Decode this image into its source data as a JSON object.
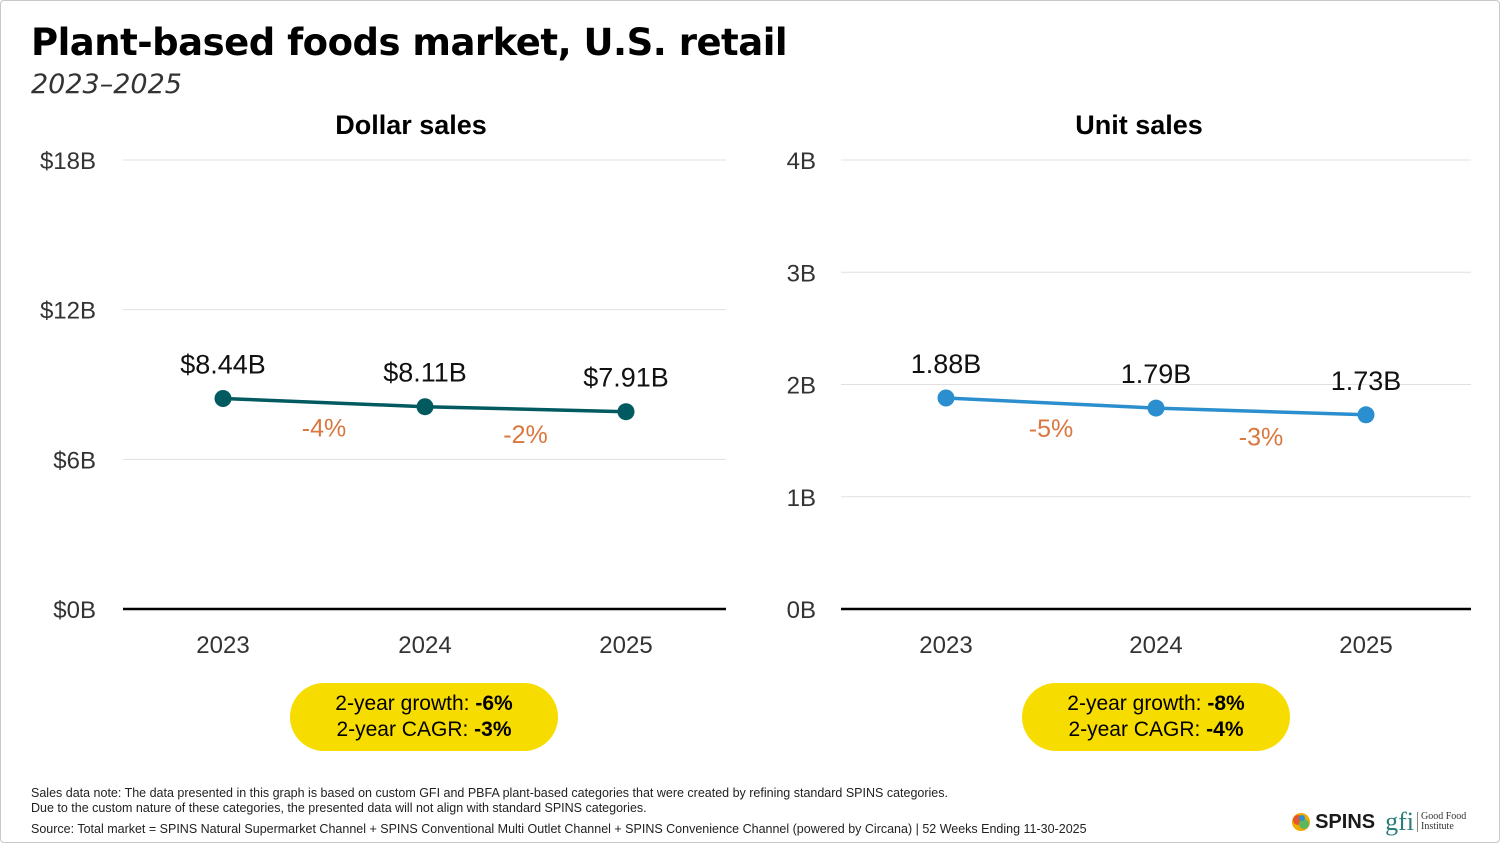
{
  "title": "Plant-based foods market, U.S. retail",
  "subtitle": "2023–2025",
  "colors": {
    "dollar_line": "#005a5f",
    "unit_line": "#2b8fcf",
    "growth_label": "#d9773f",
    "summary_pill": "#f7dc00"
  },
  "chart_data": [
    {
      "type": "line",
      "title": "Dollar sales",
      "categories": [
        "2023",
        "2024",
        "2025"
      ],
      "values": [
        8.44,
        8.11,
        7.91
      ],
      "data_labels": [
        "$8.44B",
        "$8.11B",
        "$7.91B"
      ],
      "change_labels": [
        "-4%",
        "-2%"
      ],
      "yticks": [
        0,
        6,
        12,
        18
      ],
      "ytick_labels": [
        "$0B",
        "$6B",
        "$12B",
        "$18B"
      ],
      "ylim": [
        0,
        18
      ],
      "grid": true,
      "summary": {
        "growth_label": "2-year growth:",
        "growth_value": "-6%",
        "cagr_label": "2-year CAGR:",
        "cagr_value": "-3%"
      }
    },
    {
      "type": "line",
      "title": "Unit sales",
      "categories": [
        "2023",
        "2024",
        "2025"
      ],
      "values": [
        1.88,
        1.79,
        1.73
      ],
      "data_labels": [
        "1.88B",
        "1.79B",
        "1.73B"
      ],
      "change_labels": [
        "-5%",
        "-3%"
      ],
      "yticks": [
        0,
        1,
        2,
        3,
        4
      ],
      "ytick_labels": [
        "0B",
        "1B",
        "2B",
        "3B",
        "4B"
      ],
      "ylim": [
        0,
        4
      ],
      "grid": true,
      "summary": {
        "growth_label": "2-year growth:",
        "growth_value": "-8%",
        "cagr_label": "2-year CAGR:",
        "cagr_value": "-4%"
      }
    }
  ],
  "footer": {
    "note1": "Sales data note: The data presented in this graph is based on custom GFI and PBFA plant-based categories that were created by refining standard SPINS categories.",
    "note2": "Due to the custom nature of these categories, the presented data will not align with standard SPINS categories.",
    "source": "Source: Total market = SPINS Natural Supermarket Channel + SPINS Conventional Multi Outlet Channel + SPINS Convenience Channel (powered by Circana) | 52 Weeks Ending 11-30-2025",
    "logo_spins": "SPINS",
    "logo_gfi": "gfi",
    "logo_gfi_text": "Good Food Institute"
  }
}
